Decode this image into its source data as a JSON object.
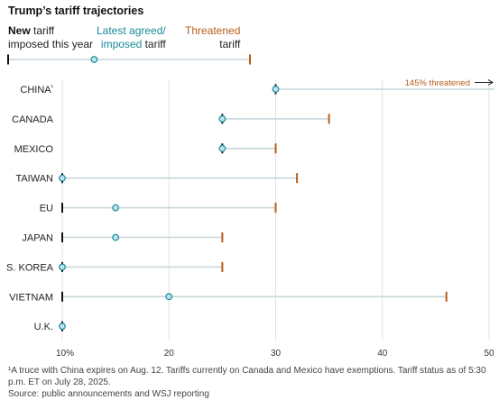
{
  "title": "Trump’s tariff trajectories",
  "legend": {
    "new_bold": "New",
    "new_rest1": " tariff",
    "new_rest2": "imposed this year",
    "latest_line1": "Latest agreed/",
    "latest_line2a": "imposed",
    "latest_line2b": " tariff",
    "threat_line1": "Threatened",
    "threat_line2": "tariff",
    "example": {
      "new": 10,
      "latest": 16.3,
      "threatened": 27.7
    }
  },
  "colors": {
    "black": "#111111",
    "teal": "#1a8a9a",
    "orange": "#b85c1a",
    "line": "#c9d6dc",
    "circle_fill": "#bfe4ec"
  },
  "chart_data": {
    "type": "dot-range",
    "xlim": [
      10,
      50
    ],
    "ticks": [
      10,
      20,
      30,
      40,
      50
    ],
    "tick_labels": [
      "10%",
      "20",
      "30",
      "40",
      "50"
    ],
    "countries": [
      {
        "name": "CHINA",
        "sup": "¹",
        "new": 30,
        "latest": 30,
        "threatened": 145
      },
      {
        "name": "CANADA",
        "new": 25,
        "latest": 25,
        "threatened": 35
      },
      {
        "name": "MEXICO",
        "new": 25,
        "latest": 25,
        "threatened": 30
      },
      {
        "name": "TAIWAN",
        "new": 10,
        "latest": 10,
        "threatened": 32
      },
      {
        "name": "EU",
        "new": 10,
        "latest": 15,
        "threatened": 30
      },
      {
        "name": "JAPAN",
        "new": 10,
        "latest": 15,
        "threatened": 25
      },
      {
        "name": "S. KOREA",
        "new": 10,
        "latest": 10,
        "threatened": 25
      },
      {
        "name": "VIETNAM",
        "new": 10,
        "latest": 20,
        "threatened": 46
      },
      {
        "name": "U.K.",
        "new": 10,
        "latest": 10,
        "threatened": null
      }
    ],
    "annotation": "145% threatened"
  },
  "footnote": "¹A truce with China expires on Aug. 12. Tariffs currently on Canada and Mexico have exemptions. Tariff status as of 5:30 p.m. ET on July 28, 2025.",
  "source": "Source: public announcements and WSJ reporting"
}
